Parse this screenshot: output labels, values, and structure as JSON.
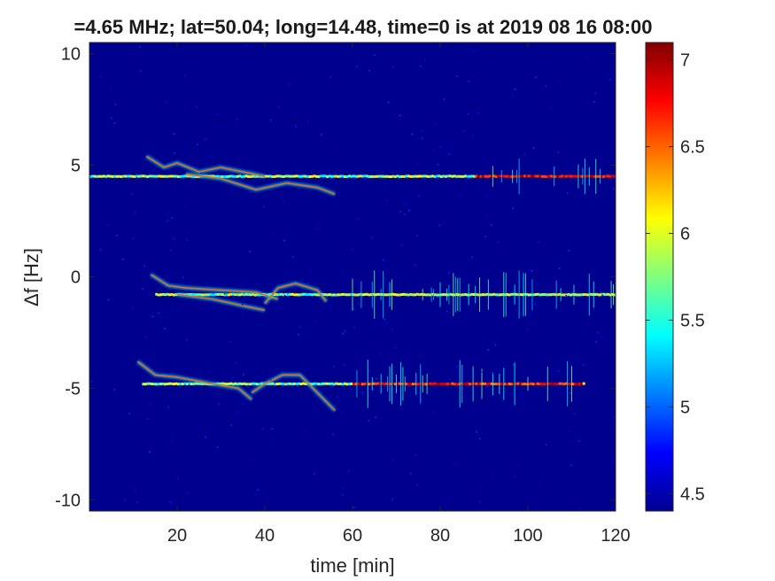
{
  "chart_data": {
    "type": "heatmap",
    "title": "=4.65 MHz;  lat=50.04; long=14.48, time=0 is at 2019 08 16 08:00",
    "xlabel": "time [min]",
    "ylabel": "Δf [Hz]",
    "xlim": [
      0,
      120
    ],
    "ylim": [
      -10.5,
      10.5
    ],
    "xticks": [
      20,
      40,
      60,
      80,
      100,
      120
    ],
    "xtick_labels": [
      "20",
      "40",
      "60",
      "80",
      "100",
      "120"
    ],
    "yticks": [
      10,
      5,
      0,
      -5,
      -10
    ],
    "ytick_labels": [
      "10",
      "5",
      "0",
      "-5",
      "-10"
    ],
    "colorbar": {
      "colormap": "jet",
      "range": [
        4.4,
        7.1
      ],
      "ticks": [
        4.5,
        5,
        5.5,
        6,
        6.5,
        7
      ],
      "tick_labels": [
        "4.5",
        "5",
        "5.5",
        "6",
        "6.5",
        "7"
      ]
    },
    "background_color": "#00008f",
    "traces": [
      {
        "x_start": 0,
        "x_end": 120,
        "y": 4.5,
        "peak_x_range": [
          88,
          120
        ],
        "peak_value": 7.1
      },
      {
        "x_start": 15,
        "x_end": 120,
        "y": -0.8,
        "peak_x_range": [
          60,
          120
        ],
        "peak_value": 6.2
      },
      {
        "x_start": 12,
        "x_end": 113,
        "y": -4.8,
        "peak_x_range": [
          60,
          112
        ],
        "peak_value": 7.0
      }
    ],
    "drifting_traces": [
      {
        "points": [
          [
            13,
            5.4
          ],
          [
            17,
            4.9
          ],
          [
            20,
            5.1
          ],
          [
            25,
            4.7
          ],
          [
            30,
            4.9
          ],
          [
            35,
            4.7
          ],
          [
            40,
            4.5
          ]
        ]
      },
      {
        "points": [
          [
            22,
            4.6
          ],
          [
            30,
            4.4
          ],
          [
            38,
            3.9
          ],
          [
            45,
            4.2
          ],
          [
            52,
            4.0
          ],
          [
            56,
            3.7
          ]
        ]
      },
      {
        "points": [
          [
            14,
            0.1
          ],
          [
            18,
            -0.4
          ],
          [
            22,
            -0.5
          ],
          [
            30,
            -0.6
          ],
          [
            38,
            -0.7
          ],
          [
            43,
            -1.0
          ]
        ]
      },
      {
        "points": [
          [
            20,
            -0.8
          ],
          [
            28,
            -1.0
          ],
          [
            35,
            -1.3
          ],
          [
            40,
            -1.5
          ]
        ]
      },
      {
        "points": [
          [
            40,
            -1.2
          ],
          [
            43,
            -0.5
          ],
          [
            47,
            -0.3
          ],
          [
            52,
            -0.6
          ],
          [
            54,
            -1.1
          ]
        ]
      },
      {
        "points": [
          [
            11,
            -3.8
          ],
          [
            15,
            -4.4
          ],
          [
            20,
            -4.5
          ],
          [
            28,
            -4.8
          ],
          [
            34,
            -5.0
          ],
          [
            37,
            -5.5
          ]
        ]
      },
      {
        "points": [
          [
            37,
            -5.2
          ],
          [
            40,
            -4.8
          ],
          [
            44,
            -4.4
          ],
          [
            48,
            -4.4
          ],
          [
            52,
            -5.2
          ],
          [
            56,
            -6.0
          ]
        ]
      }
    ]
  }
}
